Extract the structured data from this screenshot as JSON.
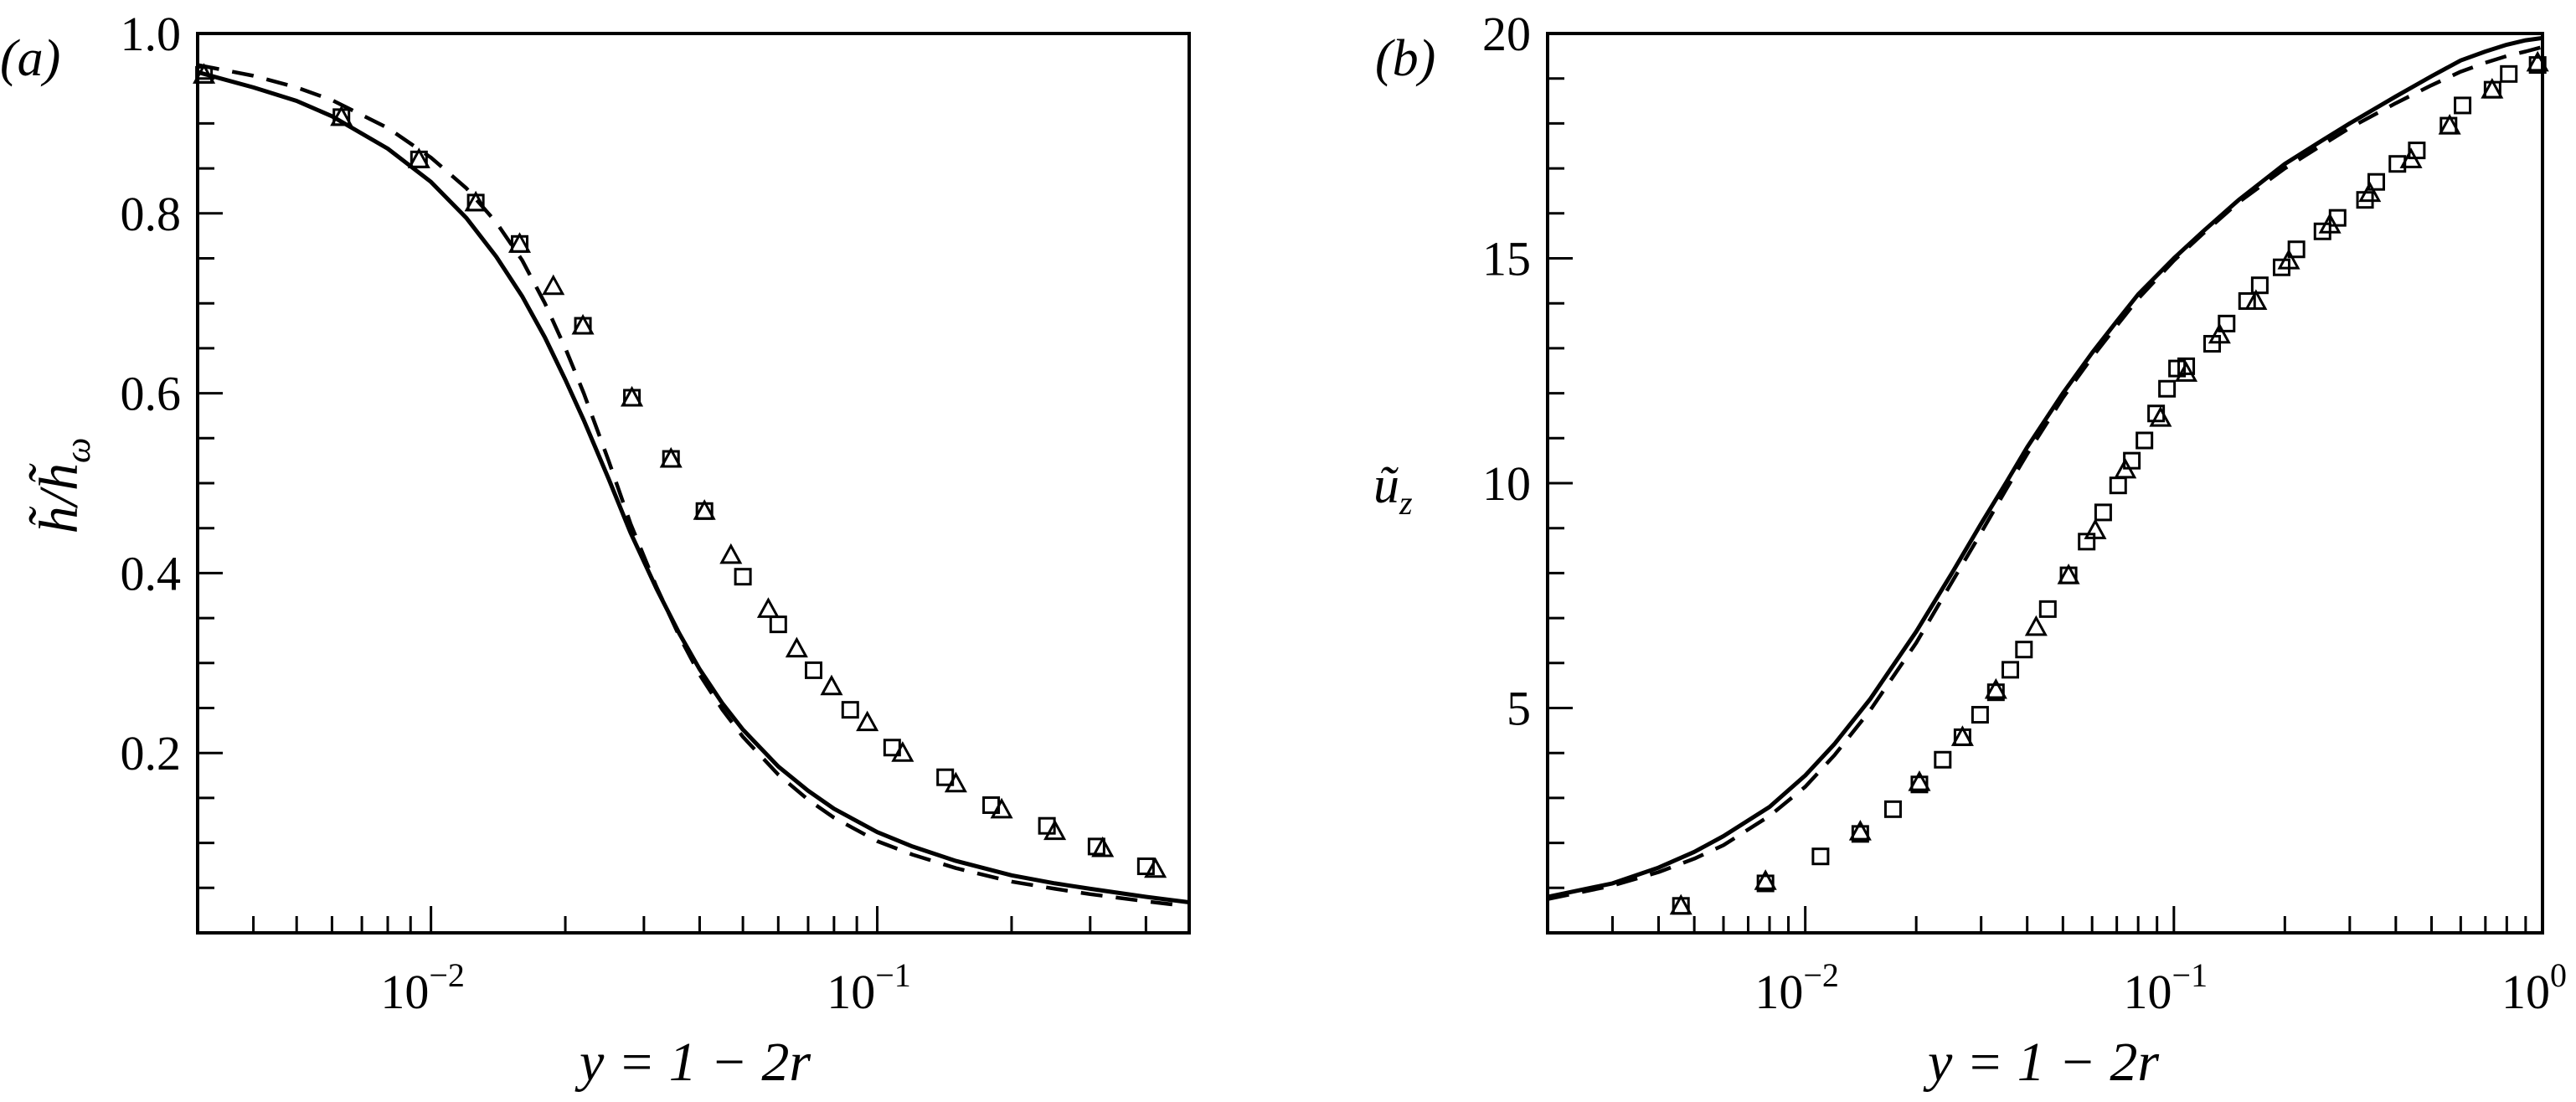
{
  "figure": {
    "panels": [
      "(a)",
      "(b)"
    ]
  },
  "chart_data": [
    {
      "type": "line",
      "panel_label": "(a)",
      "title": "",
      "xlabel": "y = 1 − 2r",
      "ylabel": "h̃/h̃_ω",
      "xscale": "log",
      "xlim": [
        0.003,
        0.5
      ],
      "ylim": [
        0.0,
        1.0
      ],
      "xticks": [
        0.01,
        0.1
      ],
      "xtick_labels": [
        "10^-2",
        "10^-1"
      ],
      "yticks": [
        0.2,
        0.4,
        0.6,
        0.8,
        1.0
      ],
      "ytick_labels": [
        "0.2",
        "0.4",
        "0.6",
        "0.8",
        "1.0"
      ],
      "y_minor_step": 0.05,
      "grid": false,
      "legend": null,
      "series": [
        {
          "name": "solid line",
          "style": "solid",
          "x": [
            0.003,
            0.004,
            0.005,
            0.006,
            0.008,
            0.01,
            0.012,
            0.014,
            0.016,
            0.018,
            0.02,
            0.022,
            0.025,
            0.028,
            0.032,
            0.036,
            0.04,
            0.045,
            0.05,
            0.06,
            0.07,
            0.08,
            0.1,
            0.12,
            0.15,
            0.2,
            0.25,
            0.3,
            0.4,
            0.5
          ],
          "y": [
            0.957,
            0.94,
            0.925,
            0.908,
            0.872,
            0.835,
            0.795,
            0.752,
            0.708,
            0.662,
            0.615,
            0.57,
            0.505,
            0.445,
            0.383,
            0.333,
            0.293,
            0.255,
            0.226,
            0.185,
            0.158,
            0.138,
            0.112,
            0.096,
            0.08,
            0.064,
            0.055,
            0.049,
            0.04,
            0.034
          ]
        },
        {
          "name": "dashed line",
          "style": "dashed",
          "x": [
            0.003,
            0.004,
            0.005,
            0.006,
            0.008,
            0.01,
            0.012,
            0.014,
            0.016,
            0.018,
            0.02,
            0.022,
            0.025,
            0.028,
            0.032,
            0.036,
            0.04,
            0.045,
            0.05,
            0.06,
            0.07,
            0.08,
            0.1,
            0.12,
            0.15,
            0.2,
            0.25,
            0.3,
            0.4,
            0.47
          ],
          "y": [
            0.965,
            0.953,
            0.94,
            0.926,
            0.895,
            0.862,
            0.828,
            0.79,
            0.748,
            0.7,
            0.65,
            0.6,
            0.525,
            0.455,
            0.385,
            0.33,
            0.287,
            0.248,
            0.218,
            0.176,
            0.148,
            0.128,
            0.102,
            0.087,
            0.072,
            0.057,
            0.049,
            0.043,
            0.035,
            0.031
          ]
        },
        {
          "name": "squares",
          "style": "marker-square",
          "x": [
            0.0031,
            0.0063,
            0.0094,
            0.0126,
            0.0158,
            0.0219,
            0.0282,
            0.0345,
            0.041,
            0.05,
            0.06,
            0.072,
            0.087,
            0.108,
            0.142,
            0.18,
            0.24,
            0.31,
            0.4
          ],
          "y": [
            0.954,
            0.907,
            0.86,
            0.812,
            0.766,
            0.675,
            0.595,
            0.527,
            0.469,
            0.396,
            0.343,
            0.292,
            0.248,
            0.206,
            0.173,
            0.142,
            0.119,
            0.096,
            0.074
          ]
        },
        {
          "name": "triangles",
          "style": "marker-triangle",
          "x": [
            0.0031,
            0.0063,
            0.0094,
            0.0126,
            0.0158,
            0.0188,
            0.0219,
            0.0282,
            0.0345,
            0.041,
            0.047,
            0.057,
            0.066,
            0.079,
            0.095,
            0.114,
            0.15,
            0.19,
            0.25,
            0.32,
            0.42
          ],
          "y": [
            0.954,
            0.907,
            0.86,
            0.812,
            0.766,
            0.719,
            0.675,
            0.595,
            0.527,
            0.469,
            0.42,
            0.36,
            0.316,
            0.274,
            0.234,
            0.2,
            0.166,
            0.137,
            0.113,
            0.094,
            0.071
          ]
        }
      ]
    },
    {
      "type": "line",
      "panel_label": "(b)",
      "title": "",
      "xlabel": "y = 1 − 2r",
      "ylabel": "ũ_z",
      "xscale": "log",
      "xlim": [
        0.002,
        1.0
      ],
      "ylim": [
        0,
        20
      ],
      "xticks": [
        0.01,
        0.1,
        1.0
      ],
      "xtick_labels": [
        "10^-2",
        "10^-1",
        "10^0"
      ],
      "yticks": [
        5,
        10,
        15,
        20
      ],
      "ytick_labels": [
        "5",
        "10",
        "15",
        "20"
      ],
      "y_minor_step": 1,
      "grid": false,
      "legend": null,
      "series": [
        {
          "name": "solid line",
          "style": "solid",
          "x": [
            0.002,
            0.003,
            0.004,
            0.005,
            0.006,
            0.008,
            0.01,
            0.012,
            0.015,
            0.02,
            0.025,
            0.03,
            0.035,
            0.04,
            0.05,
            0.06,
            0.07,
            0.08,
            0.1,
            0.12,
            0.15,
            0.2,
            0.25,
            0.3,
            0.4,
            0.5,
            0.6,
            0.7,
            0.8,
            0.9,
            1.0
          ],
          "y": [
            0.8,
            1.1,
            1.45,
            1.8,
            2.15,
            2.8,
            3.5,
            4.2,
            5.2,
            6.7,
            8.0,
            9.1,
            10.0,
            10.8,
            12.0,
            12.9,
            13.6,
            14.2,
            15.0,
            15.6,
            16.3,
            17.1,
            17.6,
            18.0,
            18.6,
            19.05,
            19.4,
            19.6,
            19.75,
            19.85,
            19.9
          ]
        },
        {
          "name": "dashed line",
          "style": "dashed",
          "x": [
            0.002,
            0.003,
            0.004,
            0.005,
            0.006,
            0.008,
            0.01,
            0.012,
            0.015,
            0.02,
            0.025,
            0.03,
            0.035,
            0.04,
            0.05,
            0.06,
            0.07,
            0.08,
            0.1,
            0.12,
            0.15,
            0.2,
            0.25,
            0.3,
            0.4,
            0.5,
            0.6,
            0.7,
            0.8,
            0.9,
            1.0
          ],
          "y": [
            0.75,
            1.05,
            1.35,
            1.65,
            1.95,
            2.6,
            3.25,
            3.95,
            4.95,
            6.45,
            7.8,
            8.9,
            9.85,
            10.65,
            11.9,
            12.8,
            13.5,
            14.1,
            14.95,
            15.55,
            16.25,
            17.0,
            17.5,
            17.9,
            18.45,
            18.85,
            19.15,
            19.35,
            19.5,
            19.6,
            19.7
          ]
        },
        {
          "name": "squares",
          "style": "marker-square",
          "x": [
            0.0046,
            0.0078,
            0.011,
            0.0141,
            0.0173,
            0.0204,
            0.0236,
            0.0267,
            0.0298,
            0.0329,
            0.036,
            0.0392,
            0.0455,
            0.0518,
            0.058,
            0.0643,
            0.0706,
            0.0769,
            0.0832,
            0.0895,
            0.0958,
            0.102,
            0.108,
            0.127,
            0.139,
            0.158,
            0.171,
            0.196,
            0.215,
            0.253,
            0.278,
            0.33,
            0.354,
            0.404,
            0.456,
            0.556,
            0.607,
            0.732,
            0.81,
            0.97
          ],
          "y": [
            0.6,
            1.1,
            1.7,
            2.2,
            2.75,
            3.3,
            3.85,
            4.35,
            4.85,
            5.35,
            5.85,
            6.3,
            7.2,
            7.95,
            8.7,
            9.35,
            9.95,
            10.5,
            10.95,
            11.55,
            12.1,
            12.55,
            12.6,
            13.1,
            13.55,
            14.05,
            14.4,
            14.8,
            15.2,
            15.6,
            15.9,
            16.3,
            16.7,
            17.1,
            17.4,
            17.95,
            18.4,
            18.75,
            19.1,
            19.3
          ]
        },
        {
          "name": "triangles",
          "style": "marker-triangle",
          "x": [
            0.0046,
            0.0078,
            0.0141,
            0.0204,
            0.0267,
            0.0329,
            0.0423,
            0.0518,
            0.0612,
            0.0738,
            0.092,
            0.108,
            0.133,
            0.167,
            0.205,
            0.265,
            0.34,
            0.44,
            0.56,
            0.73,
            0.97
          ],
          "y": [
            0.6,
            1.15,
            2.25,
            3.35,
            4.35,
            5.4,
            6.8,
            7.95,
            8.95,
            10.3,
            11.45,
            12.45,
            13.3,
            14.05,
            14.95,
            15.75,
            16.45,
            17.2,
            17.95,
            18.75,
            19.35
          ]
        }
      ]
    }
  ]
}
